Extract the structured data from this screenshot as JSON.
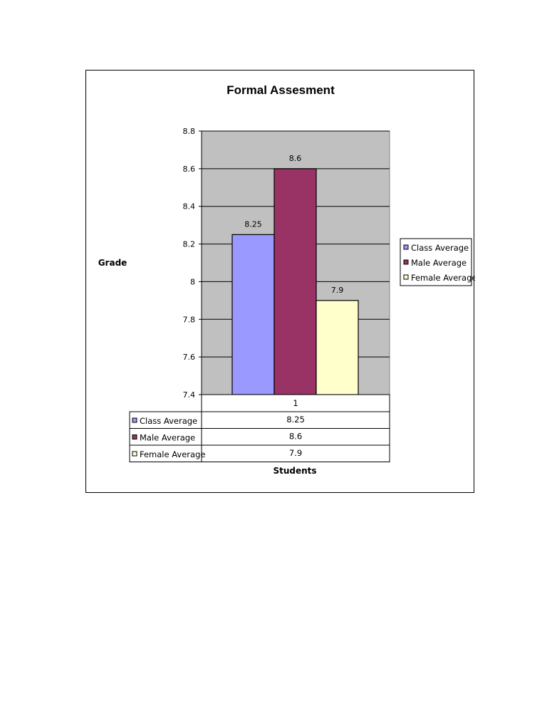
{
  "chart_data": {
    "type": "bar",
    "title": "Formal Assesment",
    "xlabel": "Students",
    "ylabel": "Grade",
    "categories": [
      "1"
    ],
    "series": [
      {
        "name": "Class Average",
        "values": [
          8.25
        ],
        "color": "#9999ff"
      },
      {
        "name": "Male Average",
        "values": [
          8.6
        ],
        "color": "#993366"
      },
      {
        "name": "Female Average",
        "values": [
          7.9
        ],
        "color": "#ffffcc"
      }
    ],
    "ylim": [
      7.4,
      8.8
    ],
    "yticks": [
      "7.4",
      "7.6",
      "7.8",
      "8",
      "8.2",
      "8.4",
      "8.6",
      "8.8"
    ],
    "data_labels": [
      "8.25",
      "8.6",
      "7.9"
    ],
    "data_table": {
      "header": "1",
      "rows": [
        {
          "label": "Class Average",
          "value": "8.25"
        },
        {
          "label": "Male Average",
          "value": "8.6"
        },
        {
          "label": "Female Average",
          "value": "7.9"
        }
      ]
    },
    "grid": true,
    "plot_background": "#c0c0c0",
    "legend_position": "right"
  }
}
